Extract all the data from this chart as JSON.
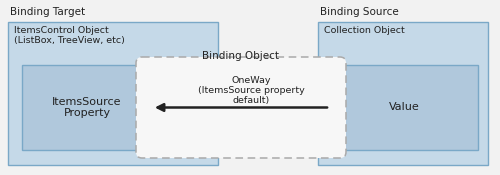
{
  "bg_color": "#f2f2f2",
  "box_fill_outer": "#c5d9e8",
  "box_fill_inner": "#b0c8dc",
  "box_edge": "#7aa8c7",
  "dashed_box_edge": "#aaaaaa",
  "arrow_color": "#222222",
  "text_color": "#222222",
  "label_binding_target": "Binding Target",
  "label_binding_source": "Binding Source",
  "label_left_outer": "ItemsControl Object\n(ListBox, TreeView, etc)",
  "label_right_outer": "Collection Object",
  "label_left_inner": "ItemsSource\nProperty",
  "label_right_inner": "Value",
  "label_binding_object": "Binding Object",
  "label_arrow": "OneWay\n(ItemsSource property\ndefault)",
  "figsize": [
    5.0,
    1.75
  ],
  "dpi": 100
}
